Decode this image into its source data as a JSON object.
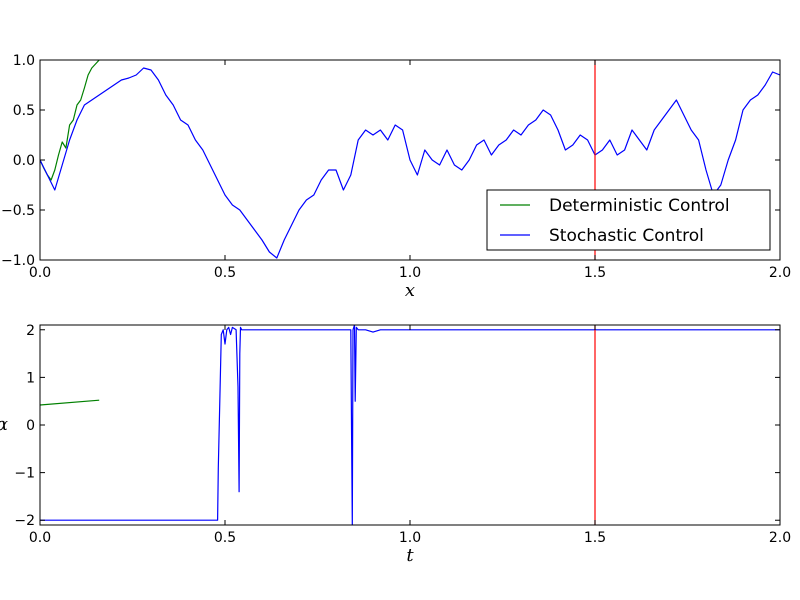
{
  "chart_data": [
    {
      "type": "line",
      "xlabel": "x",
      "ylabel": "",
      "xlim": [
        0.0,
        2.0
      ],
      "ylim": [
        -1.0,
        1.0
      ],
      "xticks": [
        "0.0",
        "0.5",
        "1.0",
        "1.5",
        "2.0"
      ],
      "yticks": [
        "−1.0",
        "−0.5",
        "0.0",
        "0.5",
        "1.0"
      ],
      "legend": "lower-right",
      "vline": 1.5,
      "vline_color": "#ff0000",
      "series": [
        {
          "name": "Deterministic Control",
          "color": "#008000",
          "x": [
            0.0,
            0.01,
            0.02,
            0.03,
            0.04,
            0.05,
            0.06,
            0.07,
            0.08,
            0.09,
            0.1,
            0.11,
            0.12,
            0.13,
            0.14,
            0.15,
            0.16
          ],
          "y": [
            0.0,
            -0.08,
            -0.15,
            -0.2,
            -0.1,
            0.05,
            0.18,
            0.12,
            0.35,
            0.4,
            0.55,
            0.6,
            0.72,
            0.85,
            0.92,
            0.96,
            1.0
          ]
        },
        {
          "name": "Stochastic Control",
          "color": "#0000ff",
          "x": [
            0.0,
            0.02,
            0.04,
            0.06,
            0.08,
            0.1,
            0.12,
            0.14,
            0.16,
            0.18,
            0.2,
            0.22,
            0.24,
            0.26,
            0.28,
            0.3,
            0.32,
            0.34,
            0.36,
            0.38,
            0.4,
            0.42,
            0.44,
            0.46,
            0.48,
            0.5,
            0.52,
            0.54,
            0.56,
            0.58,
            0.6,
            0.62,
            0.64,
            0.66,
            0.68,
            0.7,
            0.72,
            0.74,
            0.76,
            0.78,
            0.8,
            0.82,
            0.84,
            0.86,
            0.88,
            0.9,
            0.92,
            0.94,
            0.96,
            0.98,
            1.0,
            1.02,
            1.04,
            1.06,
            1.08,
            1.1,
            1.12,
            1.14,
            1.16,
            1.18,
            1.2,
            1.22,
            1.24,
            1.26,
            1.28,
            1.3,
            1.32,
            1.34,
            1.36,
            1.38,
            1.4,
            1.42,
            1.44,
            1.46,
            1.48,
            1.5,
            1.52,
            1.54,
            1.56,
            1.58,
            1.6,
            1.62,
            1.64,
            1.66,
            1.68,
            1.7,
            1.72,
            1.74,
            1.76,
            1.78,
            1.8,
            1.82,
            1.84,
            1.86,
            1.88,
            1.9,
            1.92,
            1.94,
            1.96,
            1.98,
            2.0
          ],
          "y": [
            0.0,
            -0.15,
            -0.3,
            -0.05,
            0.2,
            0.4,
            0.55,
            0.6,
            0.65,
            0.7,
            0.75,
            0.8,
            0.82,
            0.85,
            0.92,
            0.9,
            0.8,
            0.65,
            0.55,
            0.4,
            0.35,
            0.2,
            0.1,
            -0.05,
            -0.2,
            -0.35,
            -0.45,
            -0.5,
            -0.6,
            -0.7,
            -0.8,
            -0.92,
            -0.98,
            -0.8,
            -0.65,
            -0.5,
            -0.4,
            -0.35,
            -0.2,
            -0.1,
            -0.1,
            -0.3,
            -0.15,
            0.2,
            0.3,
            0.25,
            0.3,
            0.2,
            0.35,
            0.3,
            0.0,
            -0.15,
            0.1,
            0.0,
            -0.05,
            0.1,
            -0.05,
            -0.1,
            0.0,
            0.15,
            0.2,
            0.05,
            0.15,
            0.2,
            0.3,
            0.25,
            0.35,
            0.4,
            0.5,
            0.45,
            0.3,
            0.1,
            0.15,
            0.25,
            0.2,
            0.05,
            0.1,
            0.2,
            0.05,
            0.1,
            0.3,
            0.2,
            0.1,
            0.3,
            0.4,
            0.5,
            0.6,
            0.45,
            0.3,
            0.2,
            -0.1,
            -0.35,
            -0.25,
            0.0,
            0.2,
            0.5,
            0.6,
            0.65,
            0.75,
            0.88,
            0.85
          ]
        }
      ]
    },
    {
      "type": "line",
      "xlabel": "t",
      "ylabel": "α",
      "xlim": [
        0.0,
        2.0
      ],
      "ylim": [
        -2.1,
        2.1
      ],
      "xticks": [
        "0.0",
        "0.5",
        "1.0",
        "1.5",
        "2.0"
      ],
      "yticks": [
        "−2",
        "−1",
        "0",
        "1",
        "2"
      ],
      "vline": 1.5,
      "vline_color": "#ff0000",
      "series": [
        {
          "name": "Deterministic Control",
          "color": "#008000",
          "x": [
            0.0,
            0.16
          ],
          "y": [
            0.42,
            0.52
          ]
        },
        {
          "name": "Stochastic Control",
          "color": "#0000ff",
          "x": [
            0.0,
            0.48,
            0.482,
            0.49,
            0.495,
            0.5,
            0.505,
            0.51,
            0.515,
            0.52,
            0.53,
            0.535,
            0.538,
            0.54,
            0.542,
            0.545,
            0.55,
            0.6,
            0.7,
            0.8,
            0.84,
            0.842,
            0.844,
            0.846,
            0.85,
            0.852,
            0.855,
            0.86,
            0.88,
            0.9,
            0.92,
            0.95,
            1.0,
            1.2,
            1.4,
            1.5,
            1.7,
            1.9,
            2.0
          ],
          "y": [
            -2.0,
            -2.0,
            -0.9,
            1.9,
            2.0,
            1.7,
            2.0,
            2.05,
            1.9,
            2.05,
            2.0,
            0.8,
            -1.4,
            1.5,
            2.05,
            2.0,
            2.0,
            2.0,
            2.0,
            2.0,
            2.0,
            0.0,
            -2.1,
            2.0,
            2.1,
            0.5,
            2.05,
            2.0,
            2.0,
            1.95,
            2.0,
            2.0,
            2.0,
            2.0,
            2.0,
            2.0,
            2.0,
            2.0,
            2.0
          ]
        }
      ]
    }
  ]
}
